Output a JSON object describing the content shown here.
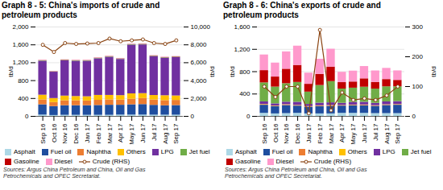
{
  "chart_data": [
    {
      "type": "bar",
      "title": "Graph 8 - 5: China's imports of crude and\npetroleum products",
      "categories": [
        "Sep 16",
        "Oct 16",
        "Nov 16",
        "Dec 16",
        "Jan 17",
        "Feb 17",
        "Mar 17",
        "Apr 17",
        "May 17",
        "Jun 17",
        "Jul 17",
        "Aug 17",
        "Sep 17"
      ],
      "stacked": true,
      "series": [
        {
          "name": "Asphalt",
          "color": "#add8e6",
          "values": [
            30,
            20,
            25,
            25,
            25,
            25,
            25,
            30,
            30,
            30,
            28,
            28,
            28
          ]
        },
        {
          "name": "Fuel oil",
          "color": "#1f4e9f",
          "values": [
            230,
            200,
            215,
            215,
            215,
            220,
            225,
            220,
            230,
            235,
            220,
            210,
            215
          ]
        },
        {
          "name": "Naphtha",
          "color": "#ed7d31",
          "values": [
            110,
            90,
            110,
            110,
            105,
            115,
            120,
            115,
            125,
            135,
            120,
            115,
            115
          ]
        },
        {
          "name": "Others",
          "color": "#ffc000",
          "values": [
            105,
            90,
            105,
            95,
            95,
            110,
            100,
            100,
            120,
            110,
            100,
            110,
            100
          ]
        },
        {
          "name": "LPG",
          "color": "#7030a0",
          "values": [
            760,
            590,
            790,
            790,
            795,
            820,
            855,
            810,
            1090,
            1090,
            870,
            840,
            860
          ]
        },
        {
          "name": "Jet fuel",
          "color": "#70ad47",
          "values": [
            10,
            8,
            10,
            10,
            10,
            10,
            10,
            10,
            10,
            12,
            10,
            10,
            10
          ]
        },
        {
          "name": "Gasoline",
          "color": "#c00000",
          "values": [
            5,
            4,
            5,
            5,
            5,
            5,
            5,
            5,
            5,
            5,
            5,
            5,
            5
          ]
        },
        {
          "name": "Diesel",
          "color": "#ff99cc",
          "values": [
            8,
            6,
            8,
            8,
            8,
            8,
            8,
            8,
            8,
            8,
            8,
            8,
            8
          ]
        },
        {
          "name": "Crude (RHS)",
          "type": "line",
          "axis": "y2",
          "marker": "circle",
          "color": "#8b4513",
          "values": [
            8000,
            7200,
            8200,
            8100,
            8150,
            8200,
            8700,
            8400,
            8500,
            8600,
            8200,
            8100,
            8500
          ]
        }
      ],
      "ylabel": "tb/d",
      "y2label": "tb/d",
      "ylim": [
        0,
        2000
      ],
      "yticks": [
        0,
        400,
        800,
        {
          "value": 1200,
          "label": "1,200"
        },
        {
          "value": 1600,
          "label": "1,600"
        },
        {
          "value": 2000,
          "label": "2,000"
        }
      ],
      "y2lim": [
        0,
        10000
      ],
      "y2ticks": [
        0,
        {
          "value": 2000,
          "label": "2,000"
        },
        {
          "value": 4000,
          "label": "4,000"
        },
        {
          "value": 6000,
          "label": "6,000"
        },
        {
          "value": 8000,
          "label": "8,000"
        },
        {
          "value": 10000,
          "label": "10,000"
        }
      ],
      "grid": true,
      "legend": "bottom",
      "source": "Sources: Argus China Petroleum and China, Oil and Gas\nPetrochemicals and OPEC Secretariat."
    },
    {
      "type": "bar",
      "title": "Graph 8 - 6: China's exports of crude and\npetroleum products",
      "categories": [
        "Sep 16",
        "Oct 16",
        "Nov 16",
        "Dec 16",
        "Jan 17",
        "Feb 17",
        "Mar 17",
        "Apr 17",
        "May 17",
        "Jun 17",
        "Jul 17",
        "Aug 17",
        "Sep 17"
      ],
      "stacked": true,
      "series": [
        {
          "name": "Asphalt",
          "color": "#add8e6",
          "values": [
            55,
            45,
            50,
            55,
            45,
            45,
            45,
            55,
            55,
            55,
            50,
            50,
            50
          ]
        },
        {
          "name": "Fuel oil",
          "color": "#1f4e9f",
          "values": [
            145,
            130,
            145,
            130,
            120,
            130,
            135,
            130,
            135,
            135,
            130,
            145,
            150
          ]
        },
        {
          "name": "Naphtha",
          "color": "#ed7d31",
          "values": [
            10,
            8,
            10,
            8,
            8,
            10,
            10,
            8,
            8,
            10,
            8,
            8,
            8
          ]
        },
        {
          "name": "Others",
          "color": "#ffc000",
          "values": [
            5,
            4,
            5,
            5,
            4,
            5,
            5,
            4,
            5,
            5,
            4,
            5,
            5
          ]
        },
        {
          "name": "LPG",
          "color": "#7030a0",
          "values": [
            45,
            38,
            45,
            55,
            38,
            48,
            48,
            38,
            48,
            48,
            42,
            52,
            52
          ]
        },
        {
          "name": "Jet fuel",
          "color": "#70ad47",
          "values": [
            340,
            300,
            330,
            355,
            220,
            315,
            380,
            255,
            255,
            270,
            255,
            270,
            265
          ]
        },
        {
          "name": "Gasoline",
          "color": "#c00000",
          "values": [
            220,
            180,
            260,
            305,
            140,
            200,
            260,
            115,
            110,
            150,
            120,
            130,
            115
          ]
        },
        {
          "name": "Diesel",
          "color": "#ff99cc",
          "values": [
            280,
            250,
            310,
            345,
            200,
            270,
            320,
            185,
            195,
            220,
            205,
            200,
            170
          ]
        },
        {
          "name": "Crude (RHS)",
          "type": "line",
          "axis": "y2",
          "marker": "circle",
          "color": "#8b4513",
          "values": [
            100,
            65,
            100,
            100,
            10,
            290,
            20,
            80,
            55,
            60,
            55,
            70,
            100
          ]
        }
      ],
      "ylabel": "tb/d",
      "y2label": "tb/d",
      "ylim": [
        0,
        1600
      ],
      "yticks": [
        0,
        400,
        800,
        {
          "value": 1200,
          "label": "1,200"
        },
        {
          "value": 1600,
          "label": "1,600"
        }
      ],
      "y2lim": [
        0,
        300
      ],
      "y2ticks": [
        0,
        100,
        200,
        300
      ],
      "grid": true,
      "legend": "bottom",
      "source": "Sources: Argus China Petroleum and China, Oil and Gas\nPetrochemicals and OPEC Secretariat."
    }
  ]
}
